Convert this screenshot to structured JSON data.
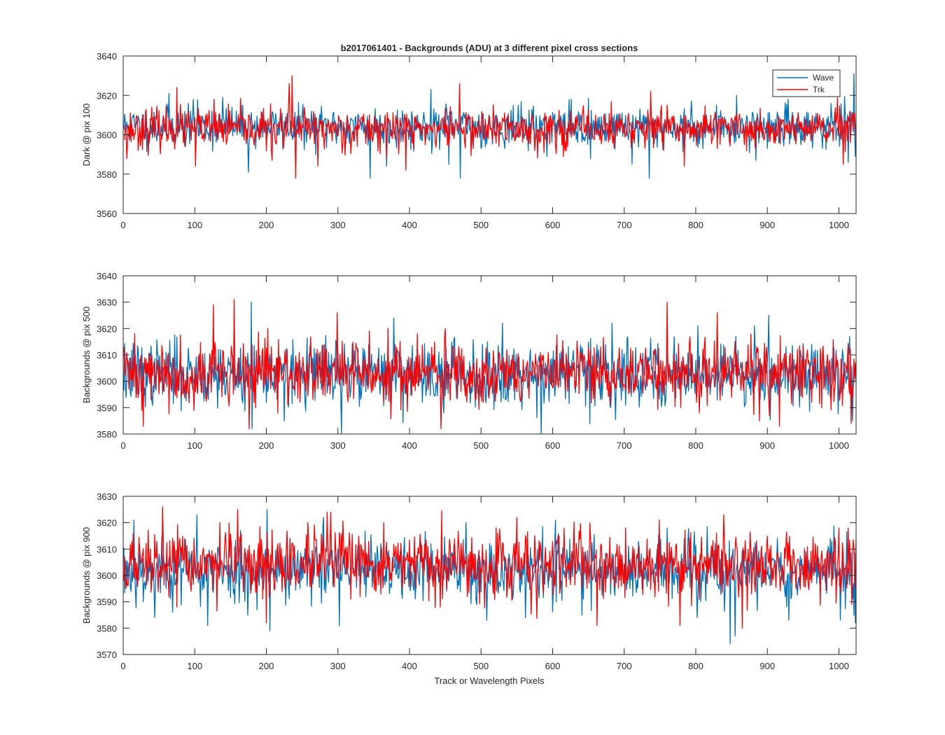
{
  "figure": {
    "title": "b2017061401 - Backgrounds (ADU) at 3 different pixel cross sections",
    "xlabel": "Track or Wavelength Pixels"
  },
  "chart_data": [
    {
      "type": "line",
      "title": "b2017061401 - Backgrounds (ADU) at 3 different pixel cross sections",
      "xlabel": "",
      "ylabel": "Dark @ pix 100",
      "xlim": [
        0,
        1024
      ],
      "ylim": [
        3560,
        3640
      ],
      "xticks": [
        0,
        100,
        200,
        300,
        400,
        500,
        600,
        700,
        800,
        900,
        1000
      ],
      "yticks": [
        3560,
        3580,
        3600,
        3620,
        3640
      ],
      "grid": false,
      "legend": {
        "position": "top-right",
        "entries": [
          "Wave",
          "Trk"
        ]
      },
      "x": {
        "start": 1,
        "end": 1024,
        "step": 1
      },
      "series": [
        {
          "name": "Wave",
          "color": "#0072BD",
          "mean": 3604,
          "spread": 5,
          "seed": 11,
          "peaks": [
            [
              64,
              3621
            ],
            [
              98,
              3618
            ],
            [
              139,
              3619
            ],
            [
              175,
              3581
            ],
            [
              345,
              3578
            ],
            [
              368,
              3584
            ],
            [
              430,
              3623
            ],
            [
              455,
              3585
            ],
            [
              471,
              3578
            ],
            [
              626,
              3618
            ],
            [
              653,
              3588
            ],
            [
              711,
              3585
            ],
            [
              735,
              3578
            ],
            [
              857,
              3620
            ],
            [
              884,
              3587
            ],
            [
              1013,
              3586
            ],
            [
              1021,
              3631
            ],
            [
              1023,
              3589
            ]
          ]
        },
        {
          "name": "Trk",
          "color": "#FF0000",
          "mean": 3603,
          "spread": 5,
          "seed": 23,
          "peaks": [
            [
              5,
              3588
            ],
            [
              75,
              3624
            ],
            [
              101,
              3584
            ],
            [
              127,
              3618
            ],
            [
              208,
              3587
            ],
            [
              232,
              3626
            ],
            [
              236,
              3630
            ],
            [
              241,
              3578
            ],
            [
              272,
              3584
            ],
            [
              395,
              3582
            ],
            [
              470,
              3626
            ],
            [
              575,
              3592
            ],
            [
              615,
              3589
            ],
            [
              701,
              3599
            ],
            [
              737,
              3622
            ],
            [
              755,
              3592
            ],
            [
              784,
              3584
            ],
            [
              909,
              3596
            ],
            [
              1006,
              3585
            ]
          ]
        }
      ]
    },
    {
      "type": "line",
      "title": "",
      "xlabel": "",
      "ylabel": "Backgrounds @ pix 500",
      "xlim": [
        0,
        1024
      ],
      "ylim": [
        3580,
        3640
      ],
      "xticks": [
        0,
        100,
        200,
        300,
        400,
        500,
        600,
        700,
        800,
        900,
        1000
      ],
      "yticks": [
        3580,
        3590,
        3600,
        3610,
        3620,
        3630,
        3640
      ],
      "grid": false,
      "legend": null,
      "x": {
        "start": 1,
        "end": 1024,
        "step": 1
      },
      "series": [
        {
          "name": "Wave",
          "color": "#0072BD",
          "mean": 3603,
          "spread": 6,
          "seed": 37,
          "peaks": [
            [
              179,
              3630
            ],
            [
              180,
              3582
            ],
            [
              225,
              3585
            ],
            [
              305,
              3580
            ],
            [
              339,
              3596
            ],
            [
              378,
              3624
            ],
            [
              448,
              3588
            ],
            [
              530,
              3622
            ],
            [
              584,
              3580
            ],
            [
              652,
              3584
            ],
            [
              683,
              3622
            ],
            [
              803,
              3621
            ],
            [
              856,
              3617
            ],
            [
              882,
              3621
            ],
            [
              902,
              3625
            ],
            [
              1015,
              3617
            ],
            [
              1019,
              3585
            ]
          ]
        },
        {
          "name": "Trk",
          "color": "#FF0000",
          "mean": 3603,
          "spread": 6,
          "seed": 41,
          "peaks": [
            [
              16,
              3618
            ],
            [
              28,
              3583
            ],
            [
              126,
              3629
            ],
            [
              155,
              3631
            ],
            [
              176,
              3582
            ],
            [
              202,
              3620
            ],
            [
              299,
              3626
            ],
            [
              370,
              3620
            ],
            [
              444,
              3582
            ],
            [
              450,
              3620
            ],
            [
              650,
              3613
            ],
            [
              760,
              3630
            ],
            [
              805,
              3588
            ],
            [
              830,
              3626
            ],
            [
              889,
              3585
            ],
            [
              917,
              3583
            ],
            [
              1017,
              3584
            ]
          ]
        }
      ]
    },
    {
      "type": "line",
      "title": "",
      "xlabel": "Track or Wavelength Pixels",
      "ylabel": "Backgrounds @ pix 900",
      "xlim": [
        0,
        1024
      ],
      "ylim": [
        3570,
        3630
      ],
      "xticks": [
        0,
        100,
        200,
        300,
        400,
        500,
        600,
        700,
        800,
        900,
        1000
      ],
      "yticks": [
        3570,
        3580,
        3590,
        3600,
        3610,
        3620,
        3630
      ],
      "grid": false,
      "legend": null,
      "x": {
        "start": 1,
        "end": 1024,
        "step": 1
      },
      "series": [
        {
          "name": "Wave",
          "color": "#0072BD",
          "mean": 3602,
          "spread": 6,
          "seed": 53,
          "peaks": [
            [
              15,
              3621
            ],
            [
              44,
              3584
            ],
            [
              103,
              3623
            ],
            [
              118,
              3581
            ],
            [
              201,
              3625
            ],
            [
              205,
              3579
            ],
            [
              280,
              3622
            ],
            [
              302,
              3581
            ],
            [
              479,
              3620
            ],
            [
              508,
              3583
            ],
            [
              604,
              3621
            ],
            [
              641,
              3585
            ],
            [
              760,
              3618
            ],
            [
              802,
              3584
            ],
            [
              848,
              3574
            ],
            [
              855,
              3577
            ],
            [
              930,
              3583
            ],
            [
              1002,
              3583
            ],
            [
              1023,
              3582
            ]
          ]
        },
        {
          "name": "Trk",
          "color": "#FF0000",
          "mean": 3604,
          "spread": 6,
          "seed": 67,
          "peaks": [
            [
              4,
              3595
            ],
            [
              55,
              3626
            ],
            [
              75,
              3588
            ],
            [
              135,
              3620
            ],
            [
              160,
              3625
            ],
            [
              200,
              3582
            ],
            [
              285,
              3624
            ],
            [
              290,
              3624
            ],
            [
              364,
              3620
            ],
            [
              443,
              3588
            ],
            [
              550,
              3622
            ],
            [
              662,
              3581
            ],
            [
              749,
              3621
            ],
            [
              778,
              3581
            ],
            [
              839,
              3623
            ],
            [
              865,
              3580
            ],
            [
              1000,
              3618
            ],
            [
              1018,
              3589
            ]
          ]
        }
      ]
    }
  ]
}
